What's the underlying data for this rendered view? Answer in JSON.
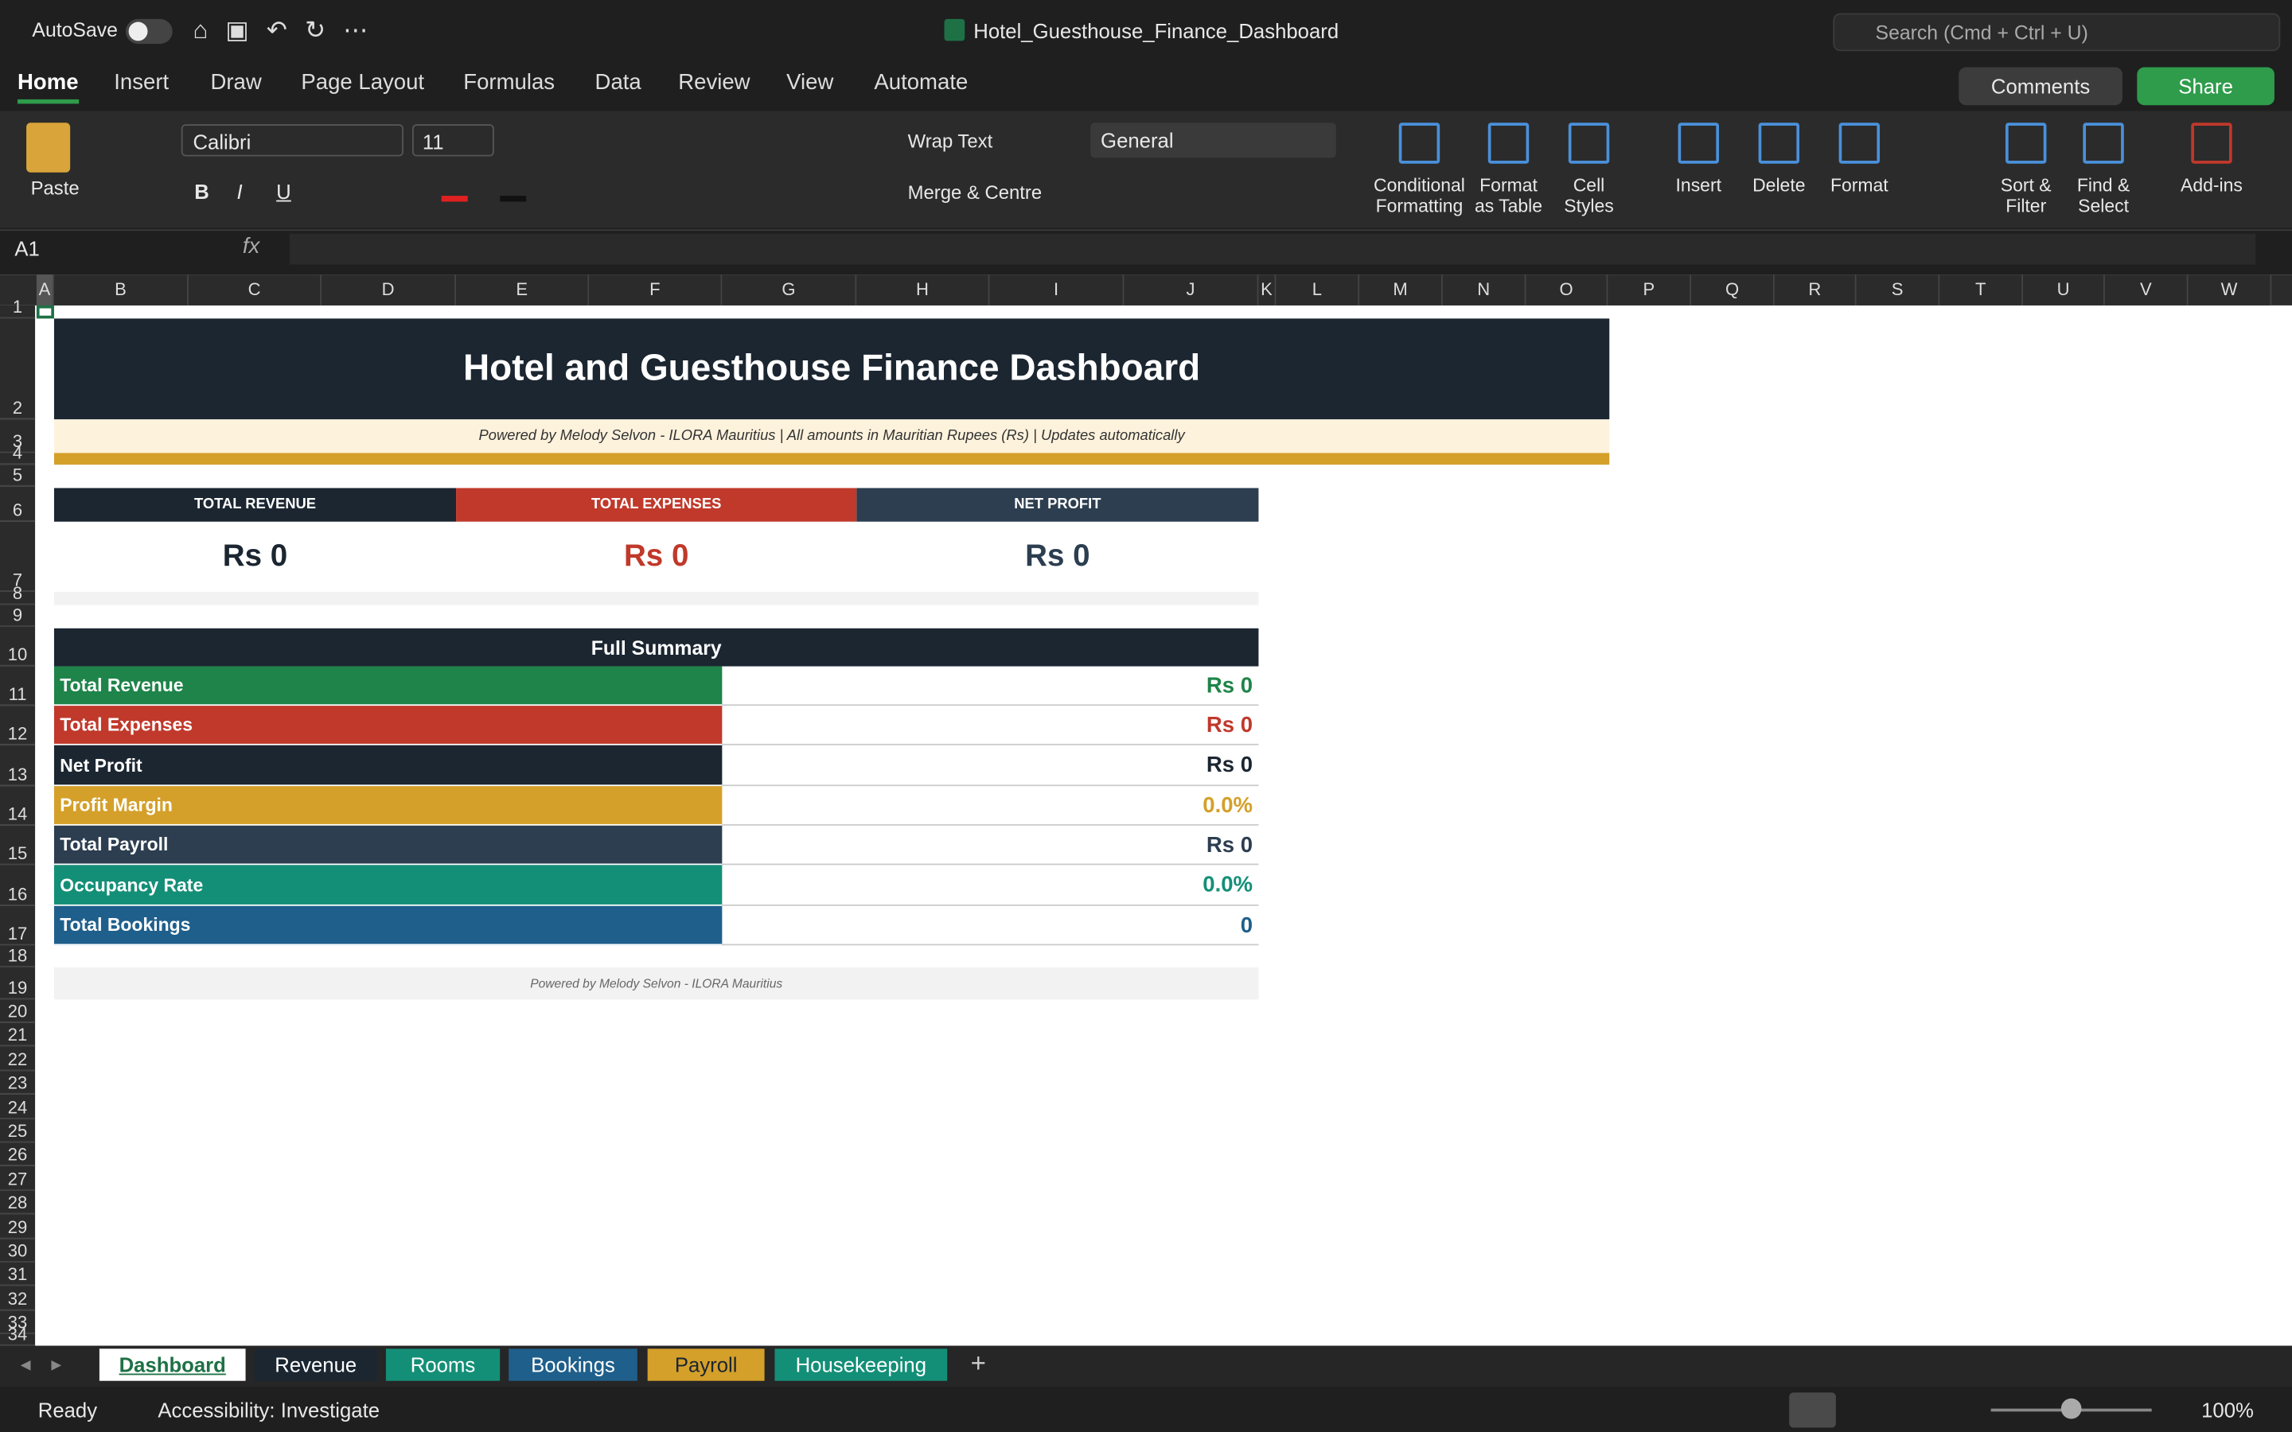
{
  "title_bar": {
    "autosave": "AutoSave",
    "file_name": "Hotel_Guesthouse_Finance_Dashboard",
    "search": "Search (Cmd + Ctrl + U)"
  },
  "ribbon_tabs": [
    "Home",
    "Insert",
    "Draw",
    "Page Layout",
    "Formulas",
    "Data",
    "Review",
    "View",
    "Automate"
  ],
  "comments": "Comments",
  "share": "Share",
  "ribbon": {
    "paste": "Paste",
    "font": "Calibri",
    "font_size": "11",
    "bold": "B",
    "italic": "I",
    "underline": "U",
    "wrap_text": "Wrap Text",
    "merge": "Merge & Centre",
    "number_format": "General",
    "buttons": [
      "Conditional Formatting",
      "Format as Table",
      "Cell Styles",
      "Insert",
      "Delete",
      "Format",
      "Sort & Filter",
      "Find & Select",
      "Add-ins"
    ]
  },
  "formula_bar": {
    "name_box": "A1",
    "fx": "fx"
  },
  "columns": [
    "A",
    "B",
    "C",
    "D",
    "E",
    "F",
    "G",
    "H",
    "I",
    "J",
    "K",
    "L",
    "M",
    "N",
    "O",
    "P",
    "Q",
    "R",
    "S",
    "T",
    "U",
    "V",
    "W"
  ],
  "rows": [
    1,
    2,
    3,
    4,
    5,
    6,
    7,
    8,
    9,
    10,
    11,
    12,
    13,
    14,
    15,
    16,
    17,
    18,
    19,
    20,
    21,
    22,
    23,
    24,
    25,
    26,
    27,
    28,
    29,
    30,
    31,
    32,
    33,
    34
  ],
  "dashboard": {
    "title": "Hotel and Guesthouse Finance Dashboard",
    "subtitle": "Powered by Melody Selvon  -  ILORA Mauritius  |  All amounts in Mauritian Rupees (Rs)  |  Updates automatically",
    "kpis": [
      {
        "label": "TOTAL REVENUE",
        "value": "Rs 0",
        "color": "#1b2631"
      },
      {
        "label": "TOTAL EXPENSES",
        "value": "Rs 0",
        "color": "#c0392b"
      },
      {
        "label": "NET PROFIT",
        "value": "Rs 0",
        "color": "#2c3e50"
      }
    ],
    "summary_title": "Full Summary",
    "summary": [
      {
        "label": "Total Revenue",
        "value": "Rs 0",
        "color": "#1e8449"
      },
      {
        "label": "Total Expenses",
        "value": "Rs 0",
        "color": "#c0392b"
      },
      {
        "label": "Net Profit",
        "value": "Rs 0",
        "color": "#1b2631"
      },
      {
        "label": "Profit Margin",
        "value": "0.0%",
        "color": "#d4a02a"
      },
      {
        "label": "Total Payroll",
        "value": "Rs 0",
        "color": "#2c3e50"
      },
      {
        "label": "Occupancy Rate",
        "value": "0.0%",
        "color": "#148f77"
      },
      {
        "label": "Total Bookings",
        "value": "0",
        "color": "#1f5f8b"
      }
    ],
    "footer": "Powered by Melody Selvon  -  ILORA Mauritius"
  },
  "sheet_tabs": [
    {
      "name": "Dashboard",
      "color": "#ffffff"
    },
    {
      "name": "Revenue",
      "color": "#1b2631"
    },
    {
      "name": "Rooms",
      "color": "#148f77"
    },
    {
      "name": "Bookings",
      "color": "#1f5f8b"
    },
    {
      "name": "Payroll",
      "color": "#d4a02a"
    },
    {
      "name": "Housekeeping",
      "color": "#148f77"
    }
  ],
  "status_bar": {
    "ready": "Ready",
    "accessibility": "Accessibility: Investigate",
    "zoom": "100%"
  }
}
